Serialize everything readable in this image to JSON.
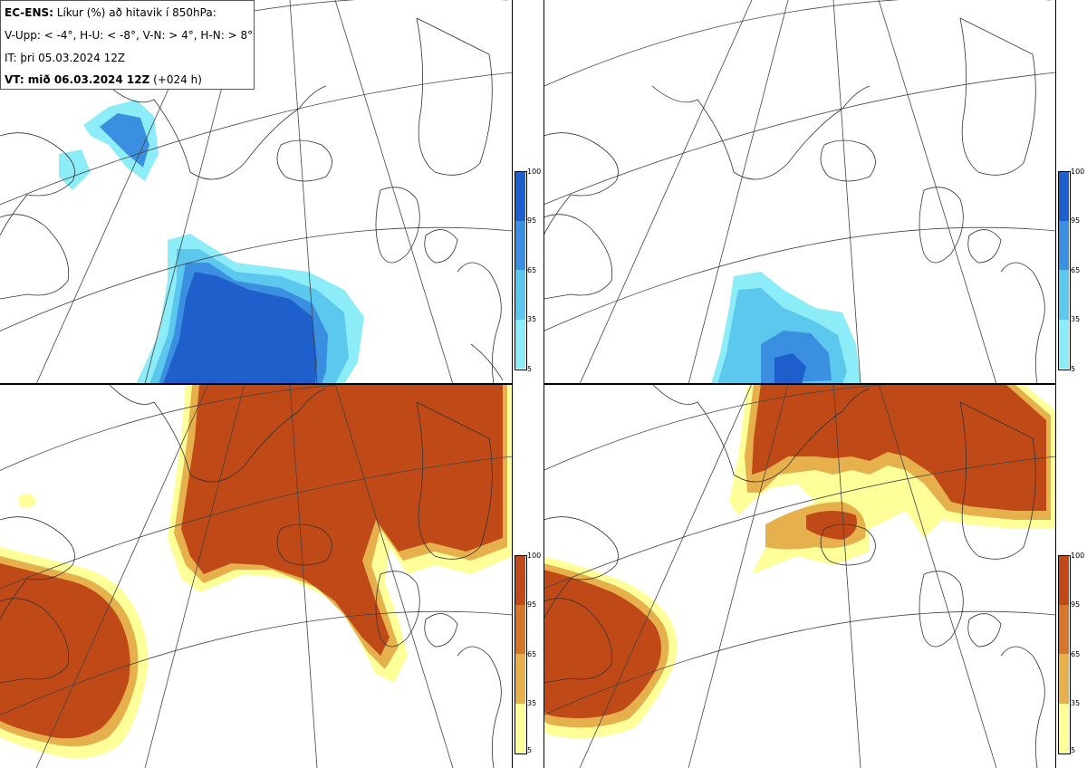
{
  "header": {
    "line1_bold": "EC-ENS:",
    "line1_rest": " Líkur (%) að hitavik í 850hPa:",
    "line2": "V-Upp: < -4°, H-U: < -8°, V-N: > 4°, H-N: > 8°",
    "line3": "IT: þri 05.03.2024 12Z",
    "line4_bold": "VT: mið 06.03.2024 12Z",
    "line4_rest": " (+024 h)"
  },
  "colorbar_blue": {
    "labels": [
      "100",
      "95",
      "65",
      "35",
      "5"
    ],
    "colors": [
      "#1f5fcc",
      "#3a8fe0",
      "#5cc8ee",
      "#8cecf8",
      "#c8fbfd"
    ]
  },
  "colorbar_red": {
    "labels": [
      "100",
      "95",
      "65",
      "35",
      "5"
    ],
    "colors": [
      "#c04a17",
      "#d4762c",
      "#e6b04c",
      "#f4e070",
      "#ffff99"
    ]
  },
  "colors": {
    "coast": "#333333",
    "grid": "#444444"
  }
}
